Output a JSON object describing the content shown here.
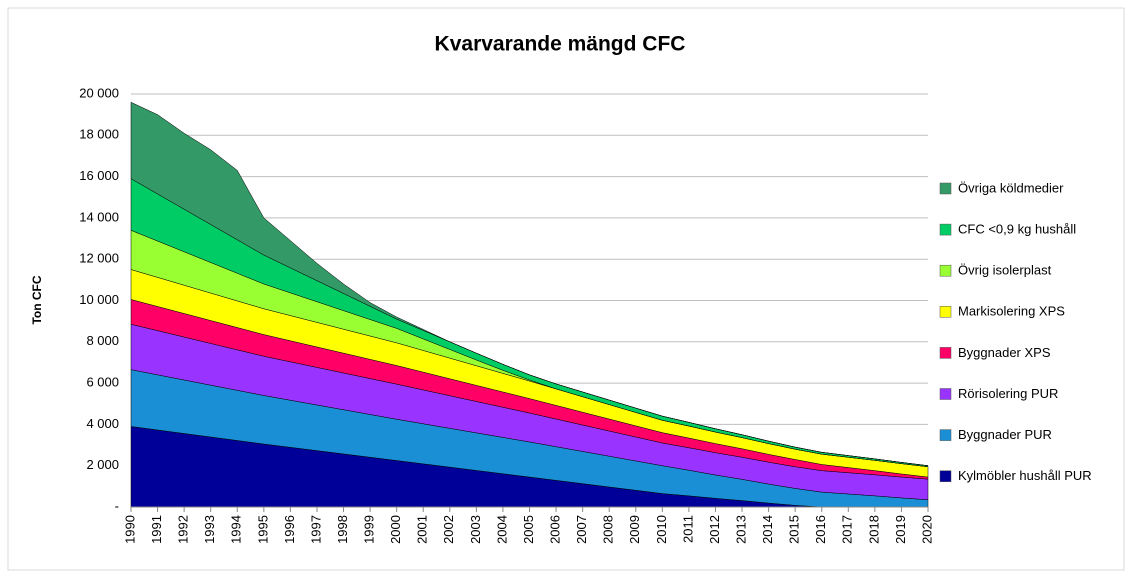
{
  "chart_data": {
    "type": "stacked_area",
    "title": "Kvarvarande mängd CFC",
    "y_label": "Ton CFC",
    "categories": [
      "1990",
      "1991",
      "1992",
      "1993",
      "1994",
      "1995",
      "1996",
      "1997",
      "1998",
      "1999",
      "2000",
      "2001",
      "2002",
      "2003",
      "2004",
      "2005",
      "2006",
      "2007",
      "2008",
      "2009",
      "2010",
      "2011",
      "2012",
      "2013",
      "2014",
      "2015",
      "2016",
      "2017",
      "2018",
      "2019",
      "2020"
    ],
    "ylim": [
      0,
      20000
    ],
    "yticks": [
      {
        "value": 0,
        "label": "-"
      },
      {
        "value": 2000,
        "label": "2 000"
      },
      {
        "value": 4000,
        "label": "4 000"
      },
      {
        "value": 6000,
        "label": "6 000"
      },
      {
        "value": 8000,
        "label": "8 000"
      },
      {
        "value": 10000,
        "label": "10 000"
      },
      {
        "value": 12000,
        "label": "12 000"
      },
      {
        "value": 14000,
        "label": "14 000"
      },
      {
        "value": 16000,
        "label": "16 000"
      },
      {
        "value": 18000,
        "label": "18 000"
      },
      {
        "value": 20000,
        "label": "20 000"
      }
    ],
    "grid": true,
    "legend": "right",
    "series": [
      {
        "name": "Kylmöbler hushåll PUR",
        "color": "#000099",
        "values": [
          3900,
          3730,
          3560,
          3390,
          3220,
          3050,
          2890,
          2730,
          2570,
          2410,
          2250,
          2090,
          1930,
          1770,
          1610,
          1450,
          1290,
          1130,
          970,
          810,
          650,
          540,
          420,
          310,
          190,
          80,
          0,
          0,
          0,
          0,
          0
        ]
      },
      {
        "name": "Byggnader PUR",
        "color": "#1a8fd6",
        "values": [
          2750,
          2670,
          2590,
          2510,
          2430,
          2350,
          2280,
          2210,
          2140,
          2070,
          2000,
          1940,
          1880,
          1820,
          1760,
          1700,
          1630,
          1560,
          1490,
          1420,
          1350,
          1240,
          1130,
          1030,
          920,
          820,
          720,
          630,
          540,
          440,
          350
        ]
      },
      {
        "name": "Rörisolering PUR",
        "color": "#9933ff",
        "values": [
          2200,
          2140,
          2080,
          2020,
          1960,
          1900,
          1860,
          1820,
          1780,
          1740,
          1700,
          1640,
          1580,
          1520,
          1460,
          1400,
          1340,
          1280,
          1220,
          1160,
          1100,
          1090,
          1080,
          1070,
          1060,
          1050,
          1040,
          1030,
          1020,
          1010,
          1000
        ]
      },
      {
        "name": "Byggnader XPS",
        "color": "#ff0066",
        "values": [
          1200,
          1170,
          1140,
          1110,
          1080,
          1050,
          1020,
          990,
          960,
          930,
          900,
          860,
          820,
          780,
          740,
          700,
          660,
          620,
          580,
          540,
          500,
          470,
          440,
          410,
          380,
          350,
          300,
          250,
          200,
          150,
          100
        ]
      },
      {
        "name": "Markisolering XPS",
        "color": "#ffff00",
        "values": [
          1450,
          1410,
          1370,
          1330,
          1290,
          1250,
          1220,
          1190,
          1160,
          1130,
          1100,
          1050,
          1000,
          950,
          900,
          850,
          800,
          750,
          700,
          650,
          600,
          580,
          560,
          540,
          520,
          500,
          500,
          500,
          500,
          500,
          500
        ]
      },
      {
        "name": "Övrig isolerplast",
        "color": "#99ff33",
        "values": [
          1900,
          1760,
          1620,
          1480,
          1340,
          1200,
          1100,
          1000,
          900,
          800,
          700,
          560,
          420,
          280,
          150,
          50,
          0,
          0,
          0,
          0,
          0,
          0,
          0,
          0,
          0,
          0,
          0,
          0,
          0,
          0,
          0
        ]
      },
      {
        "name": "CFC <0,9 kg hushåll",
        "color": "#00cc66",
        "values": [
          2500,
          2280,
          2060,
          1840,
          1620,
          1400,
          1210,
          1020,
          830,
          640,
          450,
          410,
          370,
          330,
          290,
          250,
          240,
          230,
          220,
          210,
          200,
          180,
          160,
          140,
          120,
          100,
          90,
          80,
          70,
          60,
          50
        ]
      },
      {
        "name": "Övriga köldmedier",
        "color": "#339966",
        "values": [
          3700,
          3840,
          3680,
          3620,
          3360,
          1800,
          1320,
          840,
          460,
          180,
          100,
          50,
          0,
          0,
          0,
          0,
          0,
          0,
          0,
          0,
          0,
          0,
          0,
          0,
          0,
          0,
          0,
          0,
          0,
          0,
          0
        ]
      }
    ]
  }
}
